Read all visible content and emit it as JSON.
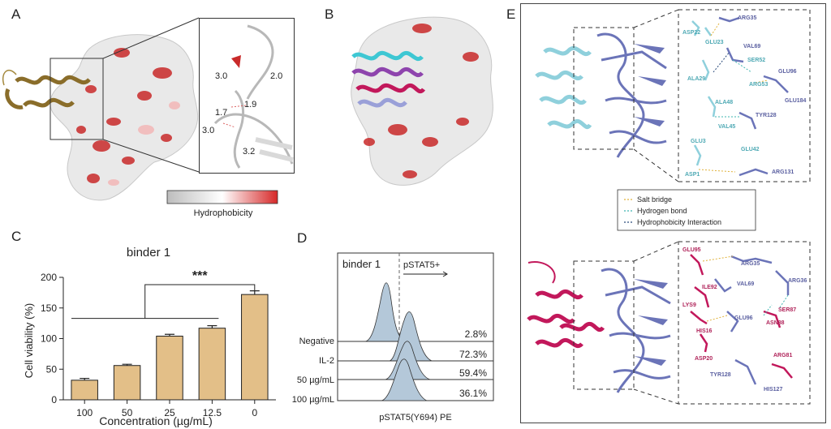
{
  "panels": {
    "a": {
      "letter": "A",
      "colorbar_label": "Hydrophobicity",
      "colorbar_colors": [
        "#bdbdbd",
        "#ffffff",
        "#d62828"
      ],
      "distances": [
        "3.0",
        "2.0",
        "1.7",
        "1.9",
        "3.0",
        "3.2"
      ]
    },
    "b": {
      "letter": "B"
    },
    "c": {
      "letter": "C",
      "significance": "***"
    },
    "d": {
      "letter": "D",
      "title": "binder 1",
      "gate_label": "pSTAT5+",
      "xlabel": "pSTAT5(Y694) PE",
      "rows": [
        {
          "label": "Negative",
          "percent": "2.8%"
        },
        {
          "label": "IL-2",
          "percent": "72.3%"
        },
        {
          "label": "50 µg/mL",
          "percent": "59.4%"
        },
        {
          "label": "100 µg/mL",
          "percent": "36.1%"
        }
      ]
    },
    "e": {
      "letter": "E",
      "legend": [
        {
          "label": "Salt bridge",
          "color": "#e0b23a"
        },
        {
          "label": "Hydrogen bond",
          "color": "#3fb5b0"
        },
        {
          "label": "Hydrophobicity Interaction",
          "color": "#2a4a7a"
        }
      ],
      "top_residues": [
        "ARG35",
        "ASP22",
        "GLU23",
        "VAL69",
        "SER52",
        "ALA29",
        "GLU96",
        "ARG53",
        "GLU184",
        "ALA48",
        "TYR128",
        "VAL45",
        "GLU3",
        "GLU42",
        "ASP1",
        "ARG131"
      ],
      "bottom_residues": [
        "GLU95",
        "ARG35",
        "ARG36",
        "ILE92",
        "VAL69",
        "LYS9",
        "SER87",
        "GLU96",
        "ASN88",
        "HIS16",
        "ASP20",
        "ARG81",
        "TYR128",
        "HIS127"
      ]
    }
  },
  "chart_data": {
    "type": "bar",
    "title": "binder 1",
    "categories": [
      "100",
      "50",
      "25",
      "12.5",
      "0"
    ],
    "values": [
      32,
      56,
      104,
      117,
      172
    ],
    "errors": [
      3,
      2,
      3,
      4,
      6
    ],
    "xlabel": "Concentration (µg/mL)",
    "ylabel": "Cell viability (%)",
    "ylim": [
      0,
      200
    ],
    "yticks": [
      "0",
      "50",
      "100",
      "150",
      "200"
    ],
    "bar_color": "#e3bf88",
    "grid": false
  }
}
